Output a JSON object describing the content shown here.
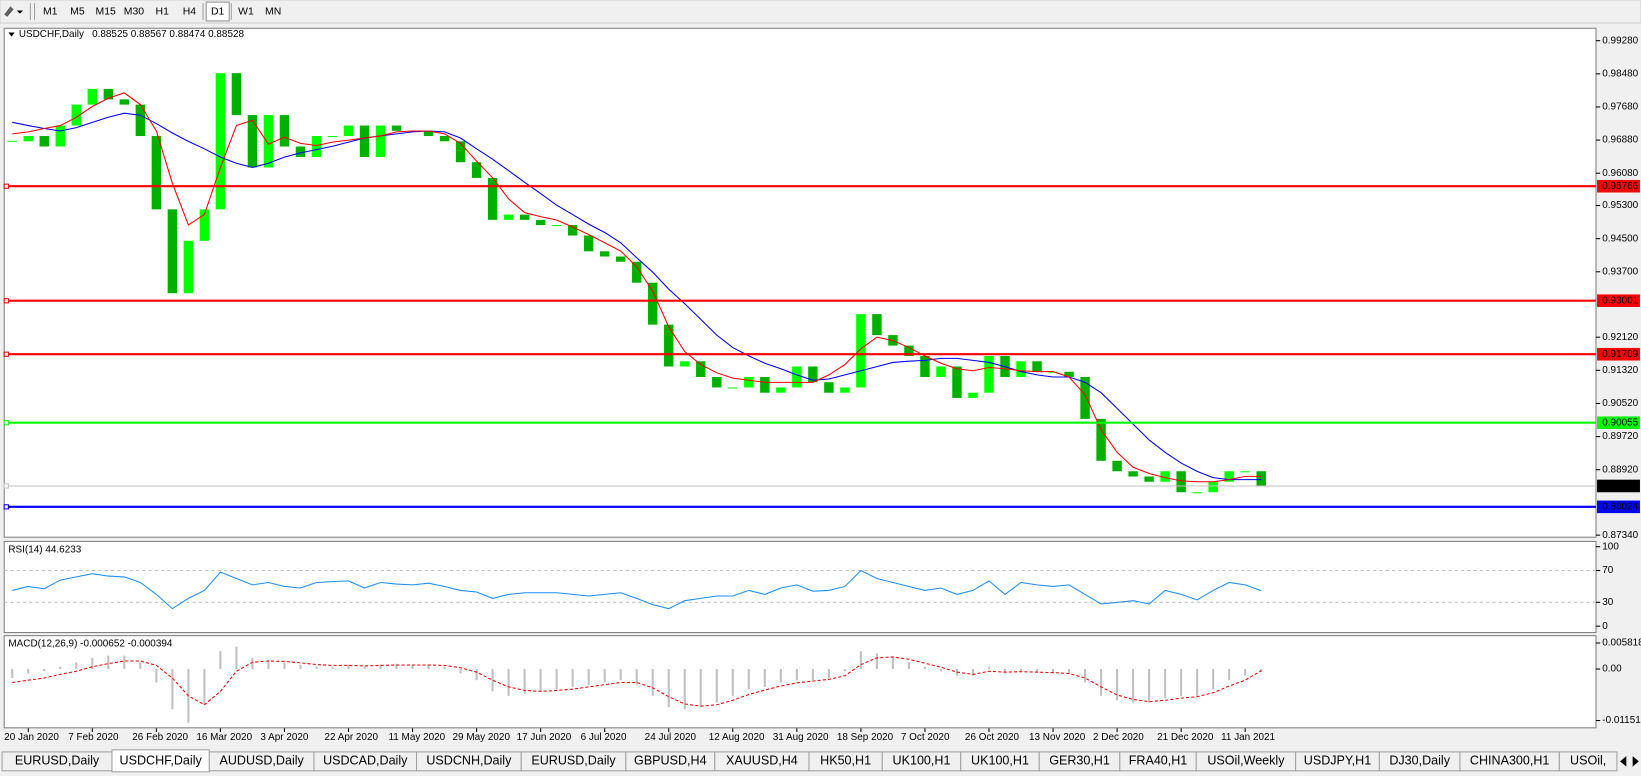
{
  "toolbar": {
    "timeframes": [
      "M1",
      "M5",
      "M15",
      "M30",
      "H1",
      "H4",
      "D1",
      "W1",
      "MN"
    ],
    "active": 6
  },
  "chart_data": [
    {
      "type": "candlestick",
      "title": "USDCHF,Daily",
      "subtitle": "0.88525 0.88567 0.88474 0.88528",
      "categories": [
        null,
        "20 Jan 2020",
        null,
        null,
        null,
        "7 Feb 2020",
        null,
        null,
        null,
        "26 Feb 2020",
        null,
        null,
        null,
        "16 Mar 2020",
        null,
        null,
        null,
        "3 Apr 2020",
        null,
        null,
        null,
        "22 Apr 2020",
        null,
        null,
        null,
        "11 May 2020",
        null,
        null,
        null,
        "29 May 2020",
        null,
        null,
        null,
        "17 Jun 2020",
        null,
        null,
        null,
        "6 Jul 2020",
        null,
        null,
        null,
        "24 Jul 2020",
        null,
        null,
        null,
        "12 Aug 2020",
        null,
        null,
        null,
        "31 Aug 2020",
        null,
        null,
        null,
        "18 Sep 2020",
        null,
        null,
        null,
        "7 Oct 2020",
        null,
        null,
        null,
        "26 Oct 2020",
        null,
        null,
        null,
        "13 Nov 2020",
        null,
        null,
        null,
        "2 Dec 2020",
        null,
        null,
        null,
        "21 Dec 2020",
        null,
        null,
        null,
        "11 Jan 2021",
        null
      ],
      "values": [
        0.96851,
        0.96978,
        0.96725,
        0.97231,
        0.97737,
        0.98116,
        0.97863,
        0.97737,
        0.96978,
        0.95207,
        0.93183,
        0.94448,
        0.95207,
        0.98496,
        0.97484,
        0.96219,
        0.97484,
        0.96725,
        0.96472,
        0.96978,
        0.96978,
        0.97231,
        0.96472,
        0.97231,
        0.97104,
        0.97104,
        0.96978,
        0.96851,
        0.96346,
        0.95966,
        0.94954,
        0.95081,
        0.94954,
        0.94828,
        0.94828,
        0.94575,
        0.94195,
        0.94069,
        0.93942,
        0.93436,
        0.92424,
        0.91413,
        0.91539,
        0.9116,
        0.90907,
        0.90907,
        0.9116,
        0.9078,
        0.90907,
        0.91413,
        0.91033,
        0.9078,
        0.90907,
        0.92677,
        0.92171,
        0.91918,
        0.91666,
        0.9116,
        0.91413,
        0.90654,
        0.9078,
        0.91666,
        0.9116,
        0.91539,
        0.91286,
        0.91286,
        0.9116,
        0.90148,
        0.89136,
        0.88883,
        0.88756,
        0.8863,
        0.88883,
        0.88377,
        0.88377,
        0.8863,
        0.88883,
        0.88883,
        0.88528
      ],
      "up_color": "#00ff00",
      "down_color": "#00b000",
      "series": [
        {
          "color": "#0000ff",
          "values": [
            0.9731,
            0.9723,
            0.9716,
            0.971,
            0.9718,
            0.9731,
            0.9743,
            0.9753,
            0.9748,
            0.9728,
            0.9705,
            0.9685,
            0.9667,
            0.9647,
            0.9632,
            0.9622,
            0.9632,
            0.9647,
            0.9657,
            0.9665,
            0.9673,
            0.9683,
            0.9693,
            0.9698,
            0.9703,
            0.9708,
            0.971,
            0.9708,
            0.9693,
            0.9667,
            0.9642,
            0.9614,
            0.9586,
            0.9559,
            0.9531,
            0.9508,
            0.9485,
            0.9465,
            0.944,
            0.9404,
            0.9369,
            0.9328,
            0.9293,
            0.9255,
            0.9217,
            0.9187,
            0.9167,
            0.9149,
            0.9136,
            0.9121,
            0.9108,
            0.9111,
            0.9121,
            0.9131,
            0.9141,
            0.9151,
            0.9154,
            0.9156,
            0.9161,
            0.9161,
            0.9156,
            0.9151,
            0.9141,
            0.9129,
            0.9121,
            0.9116,
            0.9116,
            0.9103,
            0.9078,
            0.904,
            0.9002,
            0.8964,
            0.8934,
            0.8908,
            0.8888,
            0.8873,
            0.8868,
            0.8868,
            0.8868
          ]
        },
        {
          "color": "#ff0000",
          "values": [
            0.9703,
            0.9708,
            0.9716,
            0.9723,
            0.9743,
            0.9769,
            0.9789,
            0.9802,
            0.9774,
            0.971,
            0.9584,
            0.9483,
            0.9508,
            0.9622,
            0.9723,
            0.9736,
            0.9678,
            0.9695,
            0.968,
            0.9675,
            0.9683,
            0.9688,
            0.9693,
            0.9698,
            0.9708,
            0.971,
            0.971,
            0.9703,
            0.968,
            0.9637,
            0.9597,
            0.9546,
            0.9513,
            0.9503,
            0.9495,
            0.9478,
            0.946,
            0.944,
            0.942,
            0.9382,
            0.9323,
            0.9237,
            0.9177,
            0.9146,
            0.9126,
            0.9113,
            0.9108,
            0.9103,
            0.9103,
            0.9103,
            0.9103,
            0.9121,
            0.9146,
            0.9184,
            0.9212,
            0.9204,
            0.9187,
            0.9167,
            0.9149,
            0.9136,
            0.9131,
            0.9139,
            0.9136,
            0.9131,
            0.9129,
            0.9129,
            0.9116,
            0.9073,
            0.8989,
            0.8934,
            0.8898,
            0.8883,
            0.8873,
            0.8865,
            0.8863,
            0.8863,
            0.8868,
            0.8876,
            0.8876
          ]
        }
      ],
      "ylim": [
        0.8729,
        0.9958
      ],
      "yticks": [
        {
          "value": 0.9928,
          "label": "0.99280"
        },
        {
          "value": 0.9848,
          "label": "0.98480"
        },
        {
          "value": 0.9768,
          "label": "0.97680"
        },
        {
          "value": 0.9688,
          "label": "0.96880"
        },
        {
          "value": 0.9608,
          "label": "0.96080"
        },
        {
          "value": 0.953,
          "label": "0.95300"
        },
        {
          "value": 0.945,
          "label": "0.94500"
        },
        {
          "value": 0.937,
          "label": "0.93700"
        },
        {
          "value": 0.9212,
          "label": "0.92120"
        },
        {
          "value": 0.9132,
          "label": "0.91320"
        },
        {
          "value": 0.9052,
          "label": "0.90520"
        },
        {
          "value": 0.8972,
          "label": "0.89720"
        },
        {
          "value": 0.8892,
          "label": "0.88920"
        },
        {
          "value": 0.8734,
          "label": "0.87340"
        }
      ],
      "levels": [
        {
          "value": 0.95766,
          "label": "0.95766",
          "color": "#ff0000",
          "box_color": "#ff0000"
        },
        {
          "value": 0.93001,
          "label": "0.93001",
          "color": "#ff0000",
          "box_color": "#ff0000"
        },
        {
          "value": 0.91709,
          "label": "0.91709",
          "color": "#ff0000",
          "box_color": "#ff0000"
        },
        {
          "value": 0.90055,
          "label": "0.90055",
          "color": "#00ff00",
          "box_color": "#00ff00"
        },
        {
          "value": 0.88528,
          "label": "0.88528",
          "color": "#c0c0c0",
          "box_color": "#000000"
        },
        {
          "value": 0.88024,
          "label": "0.88024",
          "color": "#0000ff",
          "box_color": "#0000ff"
        }
      ]
    },
    {
      "type": "line",
      "title": "RSI(14) 44.6233",
      "color": "#1e90ff",
      "values": [
        45,
        50,
        47,
        58,
        62,
        66,
        63,
        62,
        55,
        40,
        22,
        35,
        45,
        68,
        60,
        52,
        55,
        50,
        48,
        55,
        56,
        57,
        48,
        55,
        53,
        52,
        54,
        50,
        45,
        43,
        35,
        40,
        42,
        42,
        42,
        40,
        38,
        40,
        42,
        35,
        27,
        22,
        32,
        35,
        38,
        38,
        45,
        40,
        48,
        52,
        44,
        45,
        50,
        70,
        60,
        55,
        50,
        45,
        48,
        40,
        45,
        57,
        40,
        55,
        52,
        50,
        52,
        40,
        28,
        30,
        32,
        28,
        45,
        40,
        33,
        45,
        55,
        52,
        44.6233
      ],
      "ylim": [
        -8,
        106.6
      ],
      "yticks": [
        100,
        70,
        30,
        0
      ],
      "levels": [
        70,
        30
      ]
    },
    {
      "type": "macd",
      "title": "MACD(12,26,9) -0.000652 -0.000394",
      "color": "#c0c0c0",
      "values": [
        -0.002,
        -0.001,
        -0.0005,
        0.0005,
        0.0015,
        0.0025,
        0.003,
        0.003,
        0.0015,
        -0.003,
        -0.009,
        -0.012,
        -0.008,
        0.004,
        0.005,
        0.0025,
        0.002,
        0.0015,
        0.001,
        0.0005,
        0.0005,
        0.001,
        0.0005,
        0.001,
        0.0012,
        0.001,
        0.001,
        0.0005,
        -0.001,
        -0.0025,
        -0.005,
        -0.006,
        -0.0055,
        -0.005,
        -0.0045,
        -0.004,
        -0.0035,
        -0.003,
        -0.0025,
        -0.0035,
        -0.006,
        -0.0085,
        -0.009,
        -0.0085,
        -0.0075,
        -0.006,
        -0.0045,
        -0.004,
        -0.003,
        -0.0025,
        -0.0025,
        -0.002,
        -0.0005,
        0.004,
        0.0035,
        0.0025,
        0.0015,
        0.0005,
        -0.0005,
        -0.0015,
        -0.0015,
        0.0005,
        -0.001,
        -0.0005,
        -0.0008,
        -0.001,
        -0.0012,
        -0.003,
        -0.006,
        -0.007,
        -0.0075,
        -0.0075,
        -0.0065,
        -0.006,
        -0.006,
        -0.0045,
        -0.0025,
        -0.0015,
        -0.000652
      ],
      "series": [
        {
          "color": "#ff0000",
          "values": [
            -0.003,
            -0.0025,
            -0.002,
            -0.0012,
            -0.0005,
            0.0005,
            0.0012,
            0.0018,
            0.0018,
            0.0008,
            -0.002,
            -0.006,
            -0.008,
            -0.005,
            -0.0005,
            0.0015,
            0.0018,
            0.0017,
            0.0014,
            0.001,
            0.0008,
            0.0008,
            0.0007,
            0.0008,
            0.0009,
            0.0009,
            0.0009,
            0.0008,
            0.0003,
            -0.0007,
            -0.0025,
            -0.004,
            -0.0048,
            -0.005,
            -0.0048,
            -0.0045,
            -0.004,
            -0.0035,
            -0.003,
            -0.003,
            -0.0042,
            -0.0062,
            -0.0078,
            -0.0083,
            -0.008,
            -0.007,
            -0.0057,
            -0.0047,
            -0.0038,
            -0.0031,
            -0.0027,
            -0.0023,
            -0.0015,
            0.001,
            0.0025,
            0.0027,
            0.0022,
            0.0013,
            0.0004,
            -0.0007,
            -0.0012,
            -0.0005,
            -0.0007,
            -0.0006,
            -0.0007,
            -0.0008,
            -0.001,
            -0.002,
            -0.004,
            -0.0058,
            -0.0068,
            -0.0073,
            -0.007,
            -0.0065,
            -0.0062,
            -0.0053,
            -0.0038,
            -0.0025,
            -0.000394
          ]
        }
      ],
      "ylim": [
        -0.01315,
        0.00746
      ],
      "yticks": [
        0.005818,
        {
          "value": 0,
          "label": "0.00"
        },
        -0.011514
      ]
    }
  ],
  "tabs": {
    "items": [
      "EURUSD,Daily",
      "USDCHF,Daily",
      "AUDUSD,Daily",
      "USDCAD,Daily",
      "USDCNH,Daily",
      "EURUSD,Daily",
      "GBPUSD,H4",
      "XAUUSD,H4",
      "HK50,H1",
      "UK100,H1",
      "UK100,H1",
      "GER30,H1",
      "FRA40,H1",
      "USOil,Weekly",
      "USDJPY,H1",
      "DJ30,Daily",
      "CHINA300,H1",
      "USOil,"
    ],
    "active": 1
  }
}
